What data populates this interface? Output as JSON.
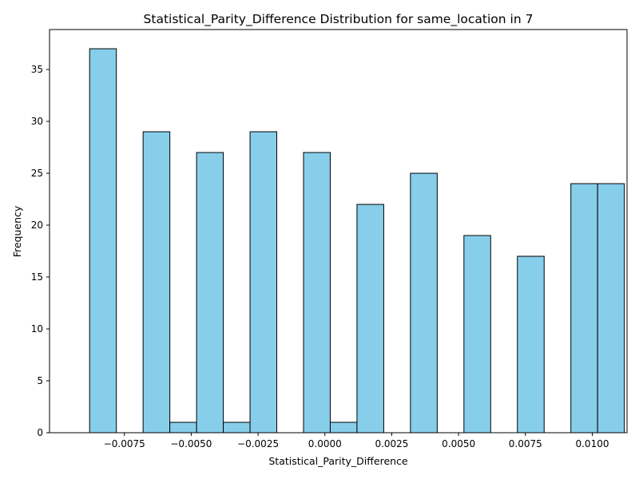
{
  "chart_data": {
    "type": "bar",
    "title": "Statistical_Parity_Difference Distribution for same_location in 7",
    "xlabel": "Statistical_Parity_Difference",
    "ylabel": "Frequency",
    "xlim": [
      -0.0103,
      0.0113
    ],
    "ylim": [
      0,
      38.85
    ],
    "bin_edges": [
      -0.0088,
      -0.0078,
      -0.0068,
      -0.0058,
      -0.0048,
      -0.0038,
      -0.0028,
      -0.0018,
      -0.0008,
      0.0002,
      0.0012,
      0.0022,
      0.0032,
      0.0042,
      0.0052,
      0.0062,
      0.0072,
      0.0082,
      0.0092,
      0.0102
    ],
    "values": [
      37,
      0,
      29,
      1,
      27,
      1,
      29,
      0,
      27,
      1,
      22,
      0,
      25,
      0,
      19,
      0,
      17,
      0,
      24,
      24
    ],
    "bin_width": 0.001,
    "first_edge": -0.0088,
    "x_ticks": [
      -0.0075,
      -0.005,
      -0.0025,
      0.0,
      0.0025,
      0.005,
      0.0075,
      0.01
    ],
    "x_tick_labels": [
      "−0.0075",
      "−0.0050",
      "−0.0025",
      "0.0000",
      "0.0025",
      "0.0050",
      "0.0075",
      "0.0100"
    ],
    "y_ticks": [
      0,
      5,
      10,
      15,
      20,
      25,
      30,
      35
    ],
    "y_tick_labels": [
      "0",
      "5",
      "10",
      "15",
      "20",
      "25",
      "30",
      "35"
    ],
    "bar_color": "#87ceeb",
    "edge_color": "#000000",
    "grid": false,
    "legend": "none"
  }
}
